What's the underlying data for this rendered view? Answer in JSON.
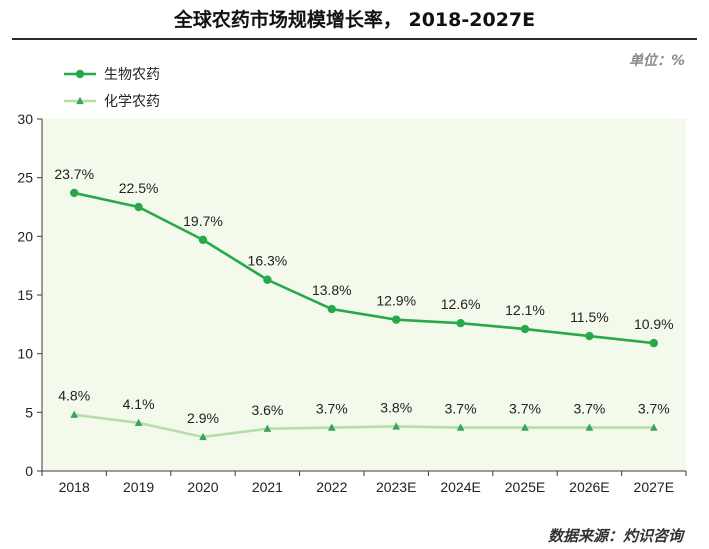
{
  "title": "全球农药市场规模增长率， 2018-2027E",
  "unit": "单位：%",
  "source": "数据来源：灼识咨询",
  "colors": {
    "plot_background": "#f3faeb",
    "bio_series": "#29a84a",
    "chem_series": "#b8dcab",
    "chem_marker": "#3ea35a"
  },
  "chart_data": {
    "type": "line",
    "categories": [
      "2018",
      "2019",
      "2020",
      "2021",
      "2022",
      "2023E",
      "2024E",
      "2025E",
      "2026E",
      "2027E"
    ],
    "ylim": [
      0,
      30
    ],
    "yticks": [
      0,
      5,
      10,
      15,
      20,
      25,
      30
    ],
    "xlabel": "",
    "ylabel": "",
    "legend_position": "top-left",
    "grid": false,
    "series": [
      {
        "name": "生物农药",
        "marker": "circle",
        "values": [
          23.7,
          22.5,
          19.7,
          16.3,
          13.8,
          12.9,
          12.6,
          12.1,
          11.5,
          10.9
        ],
        "labels": [
          "23.7%",
          "22.5%",
          "19.7%",
          "16.3%",
          "13.8%",
          "12.9%",
          "12.6%",
          "12.1%",
          "11.5%",
          "10.9%"
        ]
      },
      {
        "name": "化学农药",
        "marker": "triangle",
        "values": [
          4.8,
          4.1,
          2.9,
          3.6,
          3.7,
          3.8,
          3.7,
          3.7,
          3.7,
          3.7
        ],
        "labels": [
          "4.8%",
          "4.1%",
          "2.9%",
          "3.6%",
          "3.7%",
          "3.8%",
          "3.7%",
          "3.7%",
          "3.7%",
          "3.7%"
        ]
      }
    ]
  }
}
